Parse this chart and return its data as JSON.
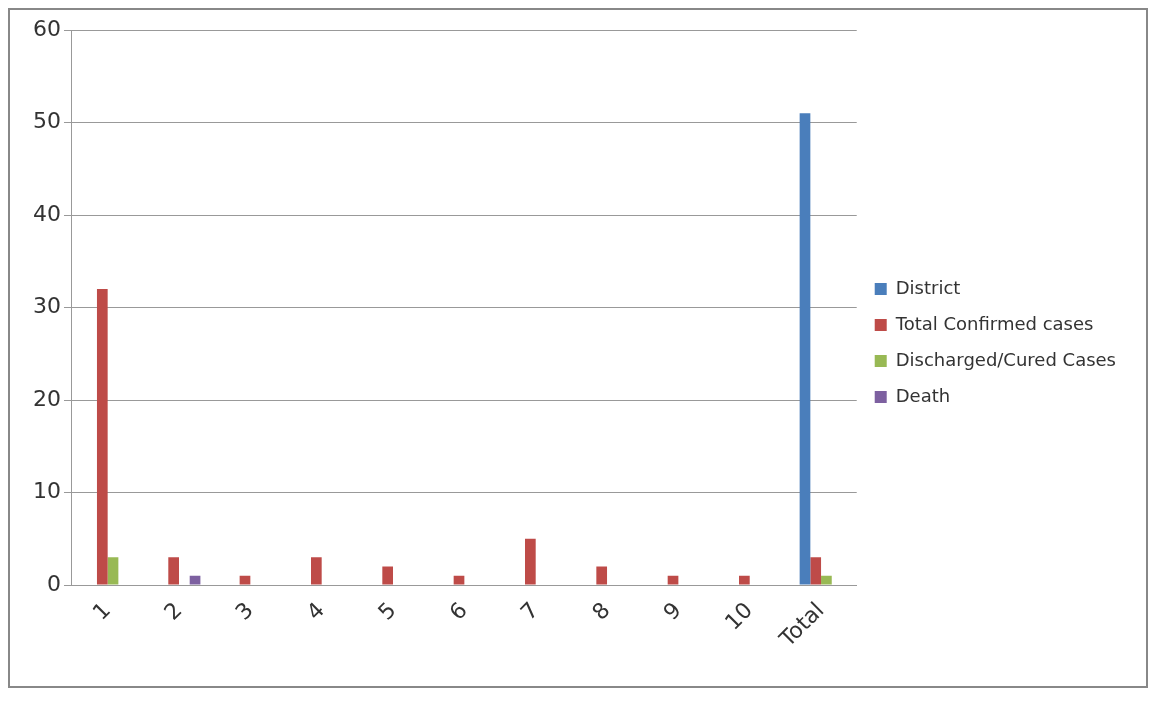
{
  "chart_data": {
    "type": "bar",
    "categories": [
      "1",
      "2",
      "3",
      "4",
      "5",
      "6",
      "7",
      "8",
      "9",
      "10",
      "Total"
    ],
    "series": [
      {
        "name": "District",
        "color": "#4a7ebb",
        "values": [
          0,
          0,
          0,
          0,
          0,
          0,
          0,
          0,
          0,
          0,
          51
        ]
      },
      {
        "name": "Total Confirmed cases",
        "color": "#be4b48",
        "values": [
          32,
          3,
          1,
          3,
          2,
          1,
          5,
          2,
          1,
          1,
          3
        ]
      },
      {
        "name": "Discharged/Cured Cases",
        "color": "#98b954",
        "values": [
          3,
          0,
          0,
          0,
          0,
          0,
          0,
          0,
          0,
          0,
          1
        ]
      },
      {
        "name": "Death",
        "color": "#7d60a0",
        "values": [
          0,
          1,
          0,
          0,
          0,
          0,
          0,
          0,
          0,
          0,
          0
        ]
      }
    ],
    "ylim": [
      0,
      60
    ],
    "yticks": [
      0,
      10,
      20,
      30,
      40,
      50,
      60
    ],
    "grid": "y",
    "legend": "right"
  }
}
